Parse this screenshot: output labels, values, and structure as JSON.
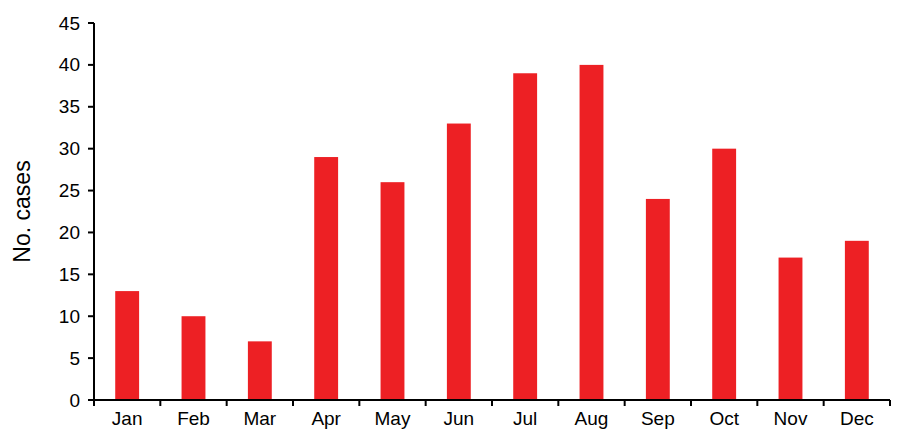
{
  "chart_data": {
    "type": "bar",
    "y_label": "No. cases",
    "categories": [
      "Jan",
      "Feb",
      "Mar",
      "Apr",
      "May",
      "Jun",
      "Jul",
      "Aug",
      "Sep",
      "Oct",
      "Nov",
      "Dec"
    ],
    "values": [
      13,
      10,
      7,
      29,
      26,
      33,
      39,
      40,
      24,
      30,
      17,
      19
    ],
    "color": "#ed2024",
    "ylim": [
      0,
      45
    ],
    "yticks": [
      0,
      5,
      10,
      15,
      20,
      25,
      30,
      35,
      40,
      45
    ],
    "grid": false
  }
}
